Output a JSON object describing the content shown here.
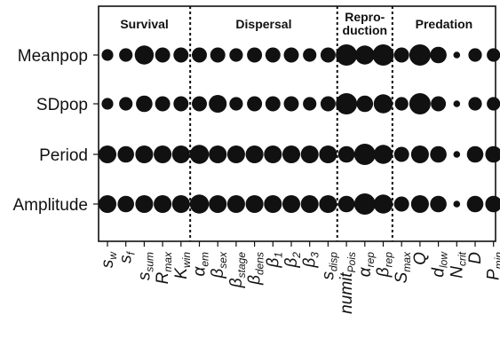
{
  "chart_data": {
    "type": "scatter",
    "groups": [
      {
        "name": "Survival",
        "first": 0,
        "last": 4
      },
      {
        "name": "Dispersal",
        "first": 5,
        "last": 12
      },
      {
        "name": "Repro-\nduction",
        "first": 13,
        "last": 15
      },
      {
        "name": "Predation",
        "first": 16,
        "last": 21
      }
    ],
    "rows": [
      "Meanpop",
      "SDpop",
      "Period",
      "Amplitude"
    ],
    "columns": [
      {
        "main": "s",
        "sub": "w"
      },
      {
        "main": "s",
        "sub": "f"
      },
      {
        "main": "s",
        "sub": "sum"
      },
      {
        "main": "R",
        "sub": "max"
      },
      {
        "main": "K",
        "sub": "win"
      },
      {
        "main": "α",
        "sub": "em"
      },
      {
        "main": "β",
        "sub": "sex"
      },
      {
        "main": "β",
        "sub": "stage"
      },
      {
        "main": "β",
        "sub": "dens"
      },
      {
        "main": "β",
        "sub": "1"
      },
      {
        "main": "β",
        "sub": "2"
      },
      {
        "main": "β",
        "sub": "3"
      },
      {
        "main": "s",
        "sub": "disp"
      },
      {
        "main": "numit",
        "sub": "Pois"
      },
      {
        "main": "α",
        "sub": "rep"
      },
      {
        "main": "β",
        "sub": "rep"
      },
      {
        "main": "S",
        "sub": "max"
      },
      {
        "main": "Q",
        "sub": ""
      },
      {
        "main": "d",
        "sub": "low"
      },
      {
        "main": "N",
        "sub": "crit"
      },
      {
        "main": "D",
        "sub": ""
      },
      {
        "main": "P",
        "sub": "min"
      }
    ],
    "values": [
      [
        3,
        4,
        8,
        5,
        5,
        5,
        5,
        4,
        5,
        5,
        5,
        4,
        5,
        10,
        8,
        10,
        5,
        10,
        6,
        1,
        4,
        4
      ],
      [
        3,
        4,
        6,
        5,
        5,
        5,
        7,
        4,
        5,
        5,
        5,
        4,
        5,
        10,
        6,
        8,
        4,
        10,
        5,
        1,
        4,
        4
      ],
      [
        7,
        6,
        7,
        7,
        7,
        8,
        7,
        7,
        7,
        7,
        7,
        7,
        7,
        6,
        10,
        8,
        5,
        7,
        6,
        1,
        6,
        6
      ],
      [
        7,
        6,
        7,
        7,
        7,
        8,
        7,
        7,
        7,
        7,
        7,
        7,
        7,
        6,
        10,
        8,
        5,
        7,
        6,
        1,
        6,
        6
      ]
    ],
    "value_range": [
      0,
      10
    ],
    "grid": false,
    "legend": "none"
  }
}
